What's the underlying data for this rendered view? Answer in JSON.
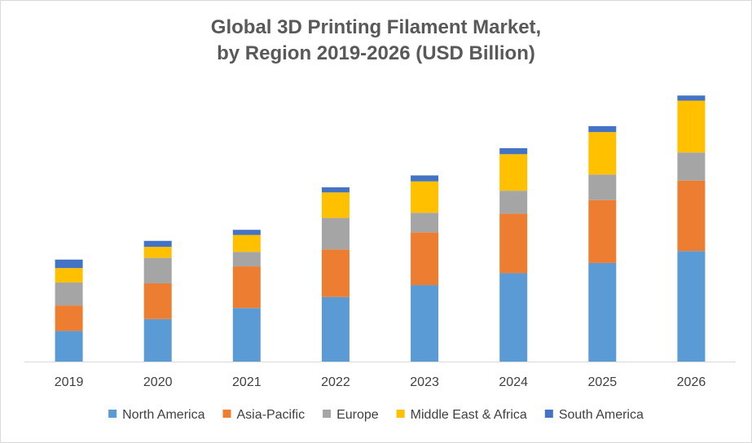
{
  "chart_data": {
    "type": "bar",
    "stacked": true,
    "title_line1": "Global 3D Printing Filament Market,",
    "title_line2": "by Region 2019-2026 (USD Billion)",
    "categories": [
      "2019",
      "2020",
      "2021",
      "2022",
      "2023",
      "2024",
      "2025",
      "2026"
    ],
    "ylim": [
      0,
      320
    ],
    "grid": false,
    "legend_position": "bottom",
    "series": [
      {
        "name": "North America",
        "color": "#5b9bd5",
        "values": [
          36,
          50,
          63,
          76,
          90,
          104,
          116,
          130
        ]
      },
      {
        "name": "Asia-Pacific",
        "color": "#ed7d31",
        "values": [
          30,
          42,
          49,
          56,
          62,
          70,
          74,
          83
        ]
      },
      {
        "name": "Europe",
        "color": "#a5a5a5",
        "values": [
          27,
          30,
          17,
          37,
          23,
          27,
          30,
          33
        ]
      },
      {
        "name": "Middle East & Africa",
        "color": "#ffc000",
        "values": [
          17,
          13,
          20,
          30,
          37,
          43,
          50,
          61
        ]
      },
      {
        "name": "South America",
        "color": "#4472c4",
        "values": [
          10,
          7,
          6,
          6,
          7,
          7,
          7,
          6
        ]
      }
    ]
  }
}
